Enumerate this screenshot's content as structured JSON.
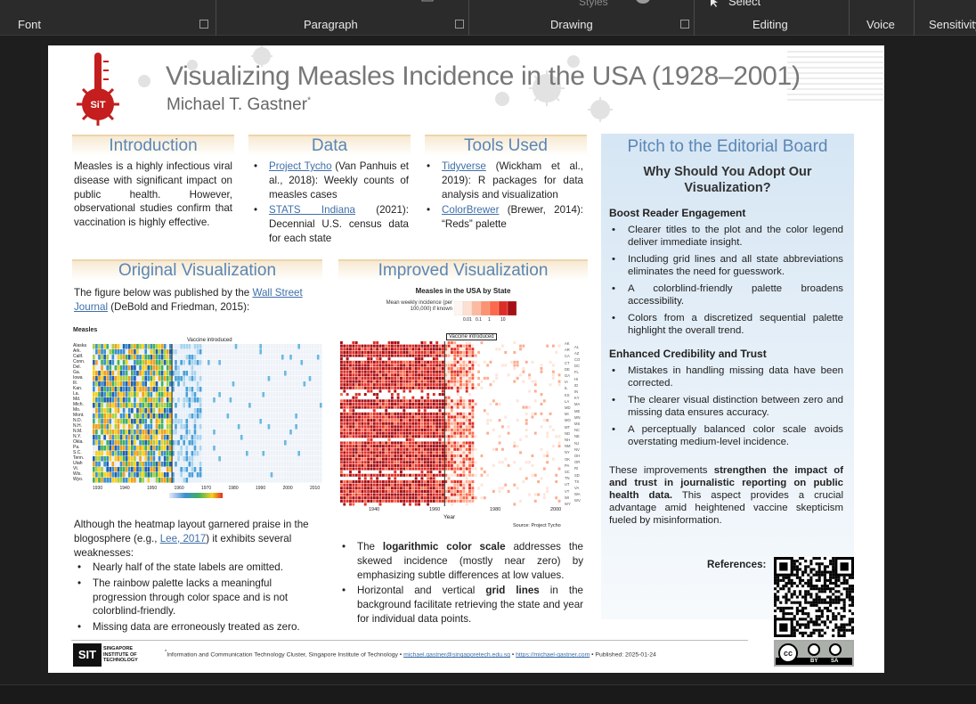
{
  "ribbon": {
    "groups": [
      "Font",
      "Paragraph",
      "Drawing",
      "Editing",
      "Voice",
      "Sensitivity"
    ],
    "styles_label": "Styles",
    "select_label": "Select"
  },
  "poster": {
    "title": "Visualizing Measles Incidence in the USA (1928–2001)",
    "author": "Michael T. Gastner",
    "author_mark": "*",
    "intro": {
      "heading": "Introduction",
      "text": "Measles is a highly infectious viral disease with significant impact on public health. However, observational studies confirm that vaccination is highly effective."
    },
    "data": {
      "heading": "Data",
      "items": [
        {
          "link": "Project Tycho",
          "rest": " (Van Panhuis et al., 2018): Weekly counts of measles cases"
        },
        {
          "link": "STATS Indiana",
          "rest": " (2021): Decennial U.S. census data for each state"
        }
      ]
    },
    "tools": {
      "heading": "Tools Used",
      "items": [
        {
          "link": "Tidyverse",
          "rest": " (Wickham et al., 2019): R packages for data analysis and visualization"
        },
        {
          "link": "ColorBrewer",
          "rest": " (Brewer, 2014): “Reds” palette"
        }
      ]
    },
    "original": {
      "heading": "Original Visualization",
      "intro_pre": "The figure below was published by the ",
      "intro_link": "Wall Street Journal",
      "intro_post": " (DeBold and Friedman, 2015):",
      "fig_title": "Measles",
      "fig_annot": "Vaccine introduced",
      "fig_states": [
        "Alaska",
        "Ark.",
        "Calif.",
        "Conn.",
        "Del.",
        "Ga.",
        "Iowa",
        "Ill.",
        "Kan.",
        "La.",
        "Md.",
        "Mich.",
        "Mo.",
        "Mont.",
        "N.D.",
        "N.H.",
        "N.M.",
        "N.Y.",
        "Okla.",
        "Pa.",
        "S.C.",
        "Tenn.",
        "Utah",
        "Vt.",
        "Wis.",
        "Wyo."
      ],
      "fig_years": [
        "1930",
        "1940",
        "1950",
        "1960",
        "1970",
        "1980",
        "1990",
        "2000",
        "2010"
      ],
      "crit_pre": "Although the heatmap layout garnered praise in the blogosphere (e.g., ",
      "crit_link": "Lee, 2017",
      "crit_post": ") it exhibits several weaknesses:",
      "points": [
        "Nearly half of the state labels are omitted.",
        "The rainbow palette lacks a meaningful progression through color space and is not colorblind-friendly.",
        "Missing data are erroneously treated as zero."
      ]
    },
    "improved": {
      "heading": "Improved Visualization",
      "fig_title": "Measles in the USA by State",
      "legend_label": "Mean weekly incidence (per 100,000) if known",
      "legend_ticks": [
        "0.01",
        "0.1",
        "1",
        "10"
      ],
      "annot": "Vaccine introduced",
      "x_label": "Year",
      "years": [
        "1940",
        "1960",
        "1980",
        "2000"
      ],
      "source": "Source: Project Tycho",
      "states": [
        "AK",
        "AL",
        "AR",
        "AZ",
        "CA",
        "CO",
        "CT",
        "DC",
        "DE",
        "FL",
        "GA",
        "HI",
        "IA",
        "ID",
        "IL",
        "IN",
        "KS",
        "KY",
        "LA",
        "MA",
        "MD",
        "ME",
        "MI",
        "MN",
        "MO",
        "MS",
        "MT",
        "NC",
        "ND",
        "NE",
        "NH",
        "NJ",
        "NM",
        "NV",
        "NY",
        "OH",
        "OK",
        "OR",
        "PA",
        "RI",
        "SC",
        "SD",
        "TN",
        "TX",
        "UT",
        "VA",
        "VT",
        "WA",
        "WI",
        "WV",
        "WY"
      ],
      "p1_pre": "The ",
      "p1_bold": "logarithmic color scale",
      "p1_post": " addresses the skewed incidence (mostly near zero) by emphasizing subtle differences at low values.",
      "p2_pre": "Horizontal and vertical ",
      "p2_bold": "grid lines",
      "p2_post": " in the background facilitate retrieving the state and year for individual data points."
    },
    "pitch": {
      "heading": "Pitch to the Editorial Board",
      "question": "Why Should You Adopt Our Visualization?",
      "sub1": "Boost Reader Engagement",
      "list1": [
        "Clearer titles to the plot and the color legend deliver immediate insight.",
        "Including grid lines and all state abbreviations eliminates the need for guesswork.",
        "A colorblind-friendly palette broadens accessibility.",
        "Colors from a discretized sequential palette highlight the overall trend."
      ],
      "sub2": "Enhanced Credibility and Trust",
      "list2": [
        "Mistakes in handling missing data have been corrected.",
        "The clearer visual distinction between zero and missing data ensures accuracy.",
        "A perceptually balanced color scale avoids overstating medium-level incidence."
      ],
      "closing_pre": "These improvements ",
      "closing_bold": "strengthen the impact of and trust in journalistic reporting on public health data.",
      "closing_post": " This aspect provides a crucial advantage amid heightened vaccine skepticism fueled by misinformation.",
      "references": "References:"
    },
    "footer": {
      "logo": "SIT",
      "logo_lines": [
        "SINGAPORE",
        "INSTITUTE OF",
        "TECHNOLOGY"
      ],
      "affil": "Information and Communication Technology Cluster, Singapore Institute of Technology",
      "email": "michael.gastner@singaporetech.edu.sg",
      "url": "https://michael-gastner.com",
      "published": "Published: 2025-01-24",
      "cc": "cc",
      "by": "BY",
      "sa": "SA"
    },
    "colors": {
      "heading": "#5a86b5",
      "band": "#edd4ac",
      "pitch_bg": "#dbe8f5",
      "red": "#b30000"
    }
  }
}
